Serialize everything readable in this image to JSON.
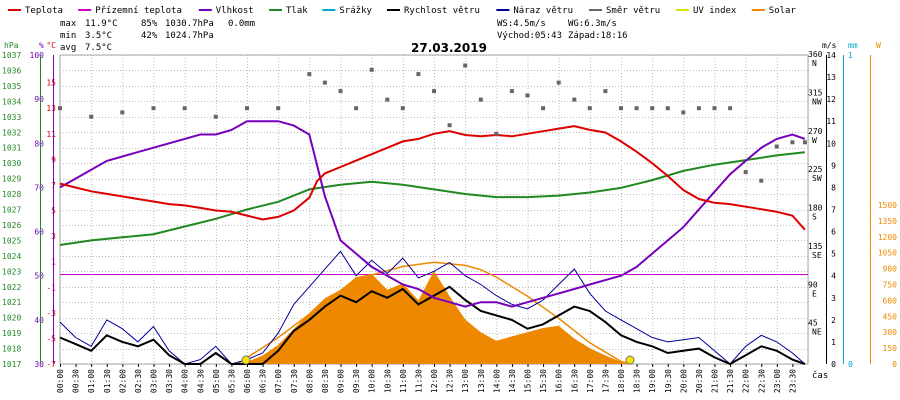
{
  "legend": [
    {
      "label": "Teplota",
      "color": "#dd0000"
    },
    {
      "label": "Přízemní teplota",
      "color": "#cc00cc"
    },
    {
      "label": "Vlhkost",
      "color": "#7700bb"
    },
    {
      "label": "Tlak",
      "color": "#228822"
    },
    {
      "label": "Srážky",
      "color": "#00aacc"
    },
    {
      "label": "Rychlost větru",
      "color": "#000000"
    },
    {
      "label": "Náraz větru",
      "color": "#000099"
    },
    {
      "label": "Směr větru",
      "color": "#666666"
    },
    {
      "label": "UV index",
      "color": "#dddd00"
    },
    {
      "label": "Solar",
      "color": "#ee8800"
    }
  ],
  "stats": {
    "max": {
      "label": "max",
      "temp": "11.9°C",
      "hum": "85%",
      "press": "1030.7hPa",
      "rain": "0.0mm"
    },
    "min": {
      "label": "min",
      "temp": "3.5°C",
      "hum": "42%",
      "press": "1024.7hPa"
    },
    "avg": {
      "label": "avg",
      "temp": "7.5°C"
    }
  },
  "wind_info": {
    "ws": "WS:4.5m/s",
    "wg": "WG:6.3m/s"
  },
  "sun_info": {
    "sunrise": "Východ:05:43",
    "sunset": "Západ:18:16"
  },
  "chart_data": {
    "type": "line",
    "title": "27.03.2019",
    "xlabel": "čas",
    "x_ticks": [
      "00:00",
      "00:30",
      "01:00",
      "01:30",
      "02:00",
      "02:30",
      "03:00",
      "03:30",
      "04:00",
      "04:30",
      "05:00",
      "05:30",
      "06:00",
      "06:30",
      "07:00",
      "07:30",
      "08:00",
      "08:30",
      "09:00",
      "09:30",
      "10:00",
      "10:30",
      "11:00",
      "11:30",
      "12:00",
      "12:30",
      "13:00",
      "13:30",
      "14:00",
      "14:30",
      "15:00",
      "15:30",
      "16:00",
      "16:30",
      "17:00",
      "17:30",
      "18:00",
      "18:30",
      "19:00",
      "19:30",
      "20:00",
      "20:30",
      "21:00",
      "21:30",
      "22:00",
      "22:30",
      "23:00",
      "23:30"
    ],
    "axes": {
      "pressure": {
        "unit": "hPa",
        "range": [
          1017,
          1037
        ],
        "ticks": [
          "1037",
          "1036",
          "1035",
          "1034",
          "1033",
          "1032",
          "1031",
          "1030",
          "1029",
          "1028",
          "1027",
          "1026",
          "1025",
          "1024",
          "1023",
          "1022",
          "1021",
          "1020",
          "1019",
          "1018",
          "1017"
        ]
      },
      "humidity": {
        "unit": "%",
        "range": [
          30,
          100
        ],
        "ticks": [
          "100",
          "90",
          "80",
          "70",
          "60",
          "50",
          "40",
          "30"
        ]
      },
      "temperature": {
        "unit": "°C",
        "range": [
          -7,
          17
        ],
        "ticks": [
          "15",
          "13",
          "11",
          "9",
          "7",
          "5",
          "3",
          "1",
          "-1",
          "-3",
          "-5",
          "-7"
        ]
      },
      "wind_direction": {
        "ticks": [
          {
            "deg": "360",
            "dir": "N"
          },
          {
            "deg": "315",
            "dir": "NW"
          },
          {
            "deg": "270",
            "dir": "W"
          },
          {
            "deg": "225",
            "dir": "SW"
          },
          {
            "deg": "180",
            "dir": "S"
          },
          {
            "deg": "135",
            "dir": "SE"
          },
          {
            "deg": "90",
            "dir": "E"
          },
          {
            "deg": "45",
            "dir": "NE"
          }
        ]
      },
      "wind_speed": {
        "unit": "m/s",
        "range": [
          0,
          14
        ],
        "ticks": [
          "14",
          "13",
          "12",
          "11",
          "10",
          "9",
          "8",
          "7",
          "6",
          "5",
          "4",
          "3",
          "2",
          "1",
          "0"
        ]
      },
      "rain": {
        "unit": "mm",
        "range": [
          0,
          1
        ],
        "ticks": [
          "1",
          "0"
        ]
      },
      "solar": {
        "unit": "W",
        "range": [
          0,
          1500
        ],
        "ticks": [
          "1500",
          "1350",
          "1200",
          "1050",
          "900",
          "750",
          "600",
          "450",
          "300",
          "150",
          "0"
        ]
      }
    },
    "series": [
      {
        "name": "Teplota",
        "axis": "temperature",
        "color": "#dd0000",
        "x": [
          0,
          0.5,
          1,
          1.5,
          2,
          2.5,
          3,
          3.5,
          4,
          4.5,
          5,
          5.5,
          6,
          6.5,
          7,
          7.5,
          8,
          8.25,
          8.5,
          9,
          9.5,
          10,
          10.5,
          11,
          11.5,
          12,
          12.5,
          13,
          13.5,
          14,
          14.5,
          15,
          15.5,
          16,
          16.5,
          17,
          17.5,
          18,
          18.5,
          19,
          19.5,
          20,
          20.5,
          21,
          21.5,
          22,
          22.5,
          23,
          23.5,
          23.9
        ],
        "y": [
          7.1,
          6.8,
          6.5,
          6.3,
          6.1,
          5.9,
          5.7,
          5.5,
          5.4,
          5.2,
          5.0,
          4.9,
          4.6,
          4.3,
          4.5,
          5.0,
          6.0,
          7.3,
          7.9,
          8.4,
          8.9,
          9.4,
          9.9,
          10.4,
          10.6,
          11.0,
          11.2,
          10.9,
          10.8,
          10.9,
          10.8,
          11.0,
          11.2,
          11.4,
          11.6,
          11.3,
          11.1,
          10.4,
          9.6,
          8.7,
          7.7,
          6.6,
          5.9,
          5.6,
          5.5,
          5.3,
          5.1,
          4.9,
          4.6,
          3.5
        ]
      },
      {
        "name": "Vlhkost",
        "axis": "humidity",
        "color": "#7700bb",
        "x": [
          0,
          0.5,
          1,
          1.5,
          2,
          2.5,
          3,
          3.5,
          4,
          4.5,
          5,
          5.5,
          6,
          6.5,
          7,
          7.5,
          8,
          8.5,
          9,
          9.5,
          10,
          10.5,
          11,
          11.5,
          12,
          12.5,
          13,
          13.5,
          14,
          14.5,
          15,
          15.5,
          16,
          16.5,
          17,
          17.5,
          18,
          18.5,
          19,
          19.5,
          20,
          20.5,
          21,
          21.5,
          22,
          22.5,
          23,
          23.5,
          23.9
        ],
        "y": [
          70,
          72,
          74,
          76,
          77,
          78,
          79,
          80,
          81,
          82,
          82,
          83,
          85,
          85,
          85,
          84,
          82,
          68,
          58,
          55,
          52,
          50,
          48,
          47,
          45,
          44,
          43,
          44,
          44,
          43,
          44,
          45,
          46,
          47,
          48,
          49,
          50,
          52,
          55,
          58,
          61,
          65,
          69,
          73,
          76,
          79,
          81,
          82,
          81
        ]
      },
      {
        "name": "Tlak",
        "axis": "pressure",
        "color": "#228822",
        "x": [
          0,
          1,
          2,
          3,
          4,
          5,
          6,
          7,
          7.5,
          8,
          9,
          10,
          11,
          12,
          13,
          14,
          15,
          16,
          17,
          18,
          19,
          20,
          21,
          22,
          23,
          23.9
        ],
        "y": [
          1024.7,
          1025.0,
          1025.2,
          1025.4,
          1025.9,
          1026.4,
          1027.0,
          1027.5,
          1027.9,
          1028.3,
          1028.6,
          1028.8,
          1028.6,
          1028.3,
          1028.0,
          1027.8,
          1027.8,
          1027.9,
          1028.1,
          1028.4,
          1028.9,
          1029.5,
          1029.9,
          1030.2,
          1030.5,
          1030.7
        ]
      },
      {
        "name": "Rychlost větru",
        "axis": "wind_speed",
        "color": "#000000",
        "x": [
          0,
          0.5,
          1,
          1.5,
          2,
          2.5,
          3,
          3.5,
          4,
          4.5,
          5,
          5.5,
          6,
          6.5,
          7,
          7.5,
          8,
          8.5,
          9,
          9.5,
          10,
          10.5,
          11,
          11.5,
          12,
          12.5,
          13,
          13.5,
          14,
          14.5,
          15,
          15.5,
          16,
          16.5,
          17,
          17.5,
          18,
          18.5,
          19,
          19.5,
          20,
          20.5,
          21,
          21.5,
          22,
          22.5,
          23,
          23.5,
          23.9
        ],
        "y": [
          1.2,
          0.9,
          0.6,
          1.3,
          1.0,
          0.8,
          1.1,
          0.4,
          0,
          0,
          0.5,
          0,
          0,
          0,
          0.6,
          1.5,
          2.0,
          2.6,
          3.1,
          2.8,
          3.3,
          3.0,
          3.4,
          2.7,
          3.1,
          3.5,
          2.9,
          2.4,
          2.2,
          2.0,
          1.6,
          1.8,
          2.2,
          2.6,
          2.4,
          1.9,
          1.3,
          1.0,
          0.8,
          0.5,
          0.6,
          0.7,
          0.3,
          0,
          0.4,
          0.8,
          0.6,
          0.2,
          0
        ]
      },
      {
        "name": "Náraz větru",
        "axis": "wind_speed",
        "color": "#000099",
        "x": [
          0,
          0.5,
          1,
          1.5,
          2,
          2.5,
          3,
          3.5,
          4,
          4.5,
          5,
          5.5,
          6,
          6.5,
          7,
          7.5,
          8,
          8.5,
          9,
          9.5,
          10,
          10.5,
          11,
          11.5,
          12,
          12.5,
          13,
          13.5,
          14,
          14.5,
          15,
          15.5,
          16,
          16.5,
          17,
          17.5,
          18,
          18.5,
          19,
          19.5,
          20,
          20.5,
          21,
          21.5,
          22,
          22.5,
          23,
          23.5,
          23.9
        ],
        "y": [
          1.9,
          1.2,
          0.8,
          2.0,
          1.6,
          1.0,
          1.7,
          0.6,
          0,
          0.2,
          0.8,
          0,
          0.2,
          0.5,
          1.4,
          2.7,
          3.5,
          4.3,
          5.1,
          4.0,
          4.7,
          4.1,
          4.8,
          3.9,
          4.2,
          4.6,
          4.0,
          3.6,
          3.1,
          2.7,
          2.5,
          2.9,
          3.6,
          4.3,
          3.2,
          2.4,
          2.0,
          1.6,
          1.2,
          1.0,
          1.1,
          1.2,
          0.6,
          0,
          0.8,
          1.3,
          1.0,
          0.5,
          0
        ]
      },
      {
        "name": "Směr větru",
        "axis": "wind_direction",
        "color": "#666666",
        "x": [
          0,
          1,
          2,
          3,
          4,
          5,
          6,
          7,
          8,
          8.5,
          9,
          9.5,
          10,
          10.5,
          11,
          11.5,
          12,
          12.5,
          13,
          13.5,
          14,
          14.5,
          15,
          15.5,
          16,
          16.5,
          17,
          17.5,
          18,
          18.5,
          19,
          19.5,
          20,
          20.5,
          21,
          21.5,
          22,
          22.5,
          23,
          23.5,
          23.9
        ],
        "y": [
          300,
          290,
          295,
          300,
          300,
          290,
          300,
          300,
          340,
          330,
          320,
          300,
          345,
          310,
          300,
          340,
          320,
          280,
          350,
          310,
          270,
          320,
          315,
          300,
          330,
          310,
          300,
          320,
          300,
          300,
          300,
          300,
          295,
          300,
          300,
          300,
          225,
          215,
          255,
          260,
          260
        ]
      },
      {
        "name": "Solar",
        "axis": "solar",
        "color": "#ee8800",
        "x": [
          5.7,
          6,
          6.5,
          7,
          7.5,
          8,
          8.5,
          9,
          9.5,
          10,
          10.5,
          11,
          11.5,
          12,
          12.5,
          13,
          13.5,
          14,
          14.5,
          15,
          15.5,
          16,
          16.5,
          17,
          17.5,
          18,
          18.3
        ],
        "y": [
          0,
          20,
          80,
          180,
          330,
          480,
          620,
          700,
          820,
          850,
          700,
          760,
          600,
          880,
          640,
          420,
          300,
          220,
          260,
          300,
          340,
          360,
          240,
          150,
          80,
          20,
          0
        ]
      },
      {
        "name": "Solar max",
        "axis": "solar",
        "color": "#ee8800",
        "x": [
          5.7,
          6,
          7,
          8,
          9,
          10,
          11,
          12,
          13,
          13.5,
          14,
          15,
          16,
          17,
          18,
          18.3
        ],
        "y": [
          0,
          60,
          250,
          470,
          690,
          840,
          920,
          960,
          930,
          890,
          820,
          640,
          430,
          200,
          25,
          0
        ]
      }
    ]
  }
}
